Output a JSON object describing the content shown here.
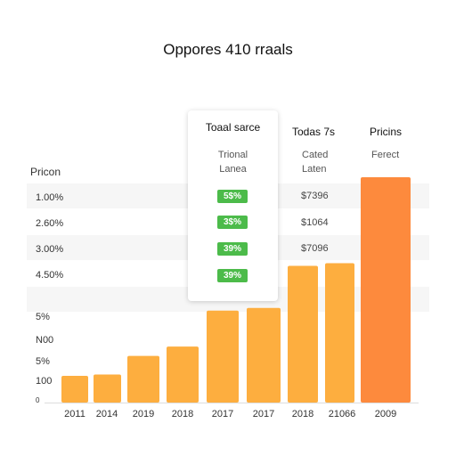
{
  "chart_data": {
    "type": "bar",
    "title": "Oppores 410 rraals",
    "xlabel": "",
    "ylabel": "Pricon",
    "ytick_labels": [
      "1.00%",
      "2.60%",
      "3.00%",
      "4.50%",
      "5%",
      "N00",
      "5%",
      "100",
      "0"
    ],
    "categories": [
      "2011",
      "2014",
      "2019",
      "2018",
      "2017",
      "2017",
      "2018",
      "21066",
      "2009"
    ],
    "values": [
      40,
      42,
      70,
      84,
      138,
      142,
      205,
      209,
      338
    ],
    "ylim": [
      0,
      350
    ],
    "colors": {
      "bar": "#fdae3f",
      "highlight_bar": "#fd8a3d",
      "badge": "#4cbb4a"
    },
    "highlight_index": 8
  },
  "popup": {
    "title": "Toaal sarce",
    "line1": "Trional",
    "line2": "Lanea",
    "badges": [
      "5$%",
      "3$%",
      "39%",
      "39%"
    ]
  },
  "columns": {
    "col1_header": "Todas 7s",
    "col1_sub1": "Cated",
    "col1_sub2": "Laten",
    "col1_values": [
      "$7396",
      "$1064",
      "$7096"
    ],
    "col2_header": "Pricins",
    "col2_sub": "Ferect"
  }
}
